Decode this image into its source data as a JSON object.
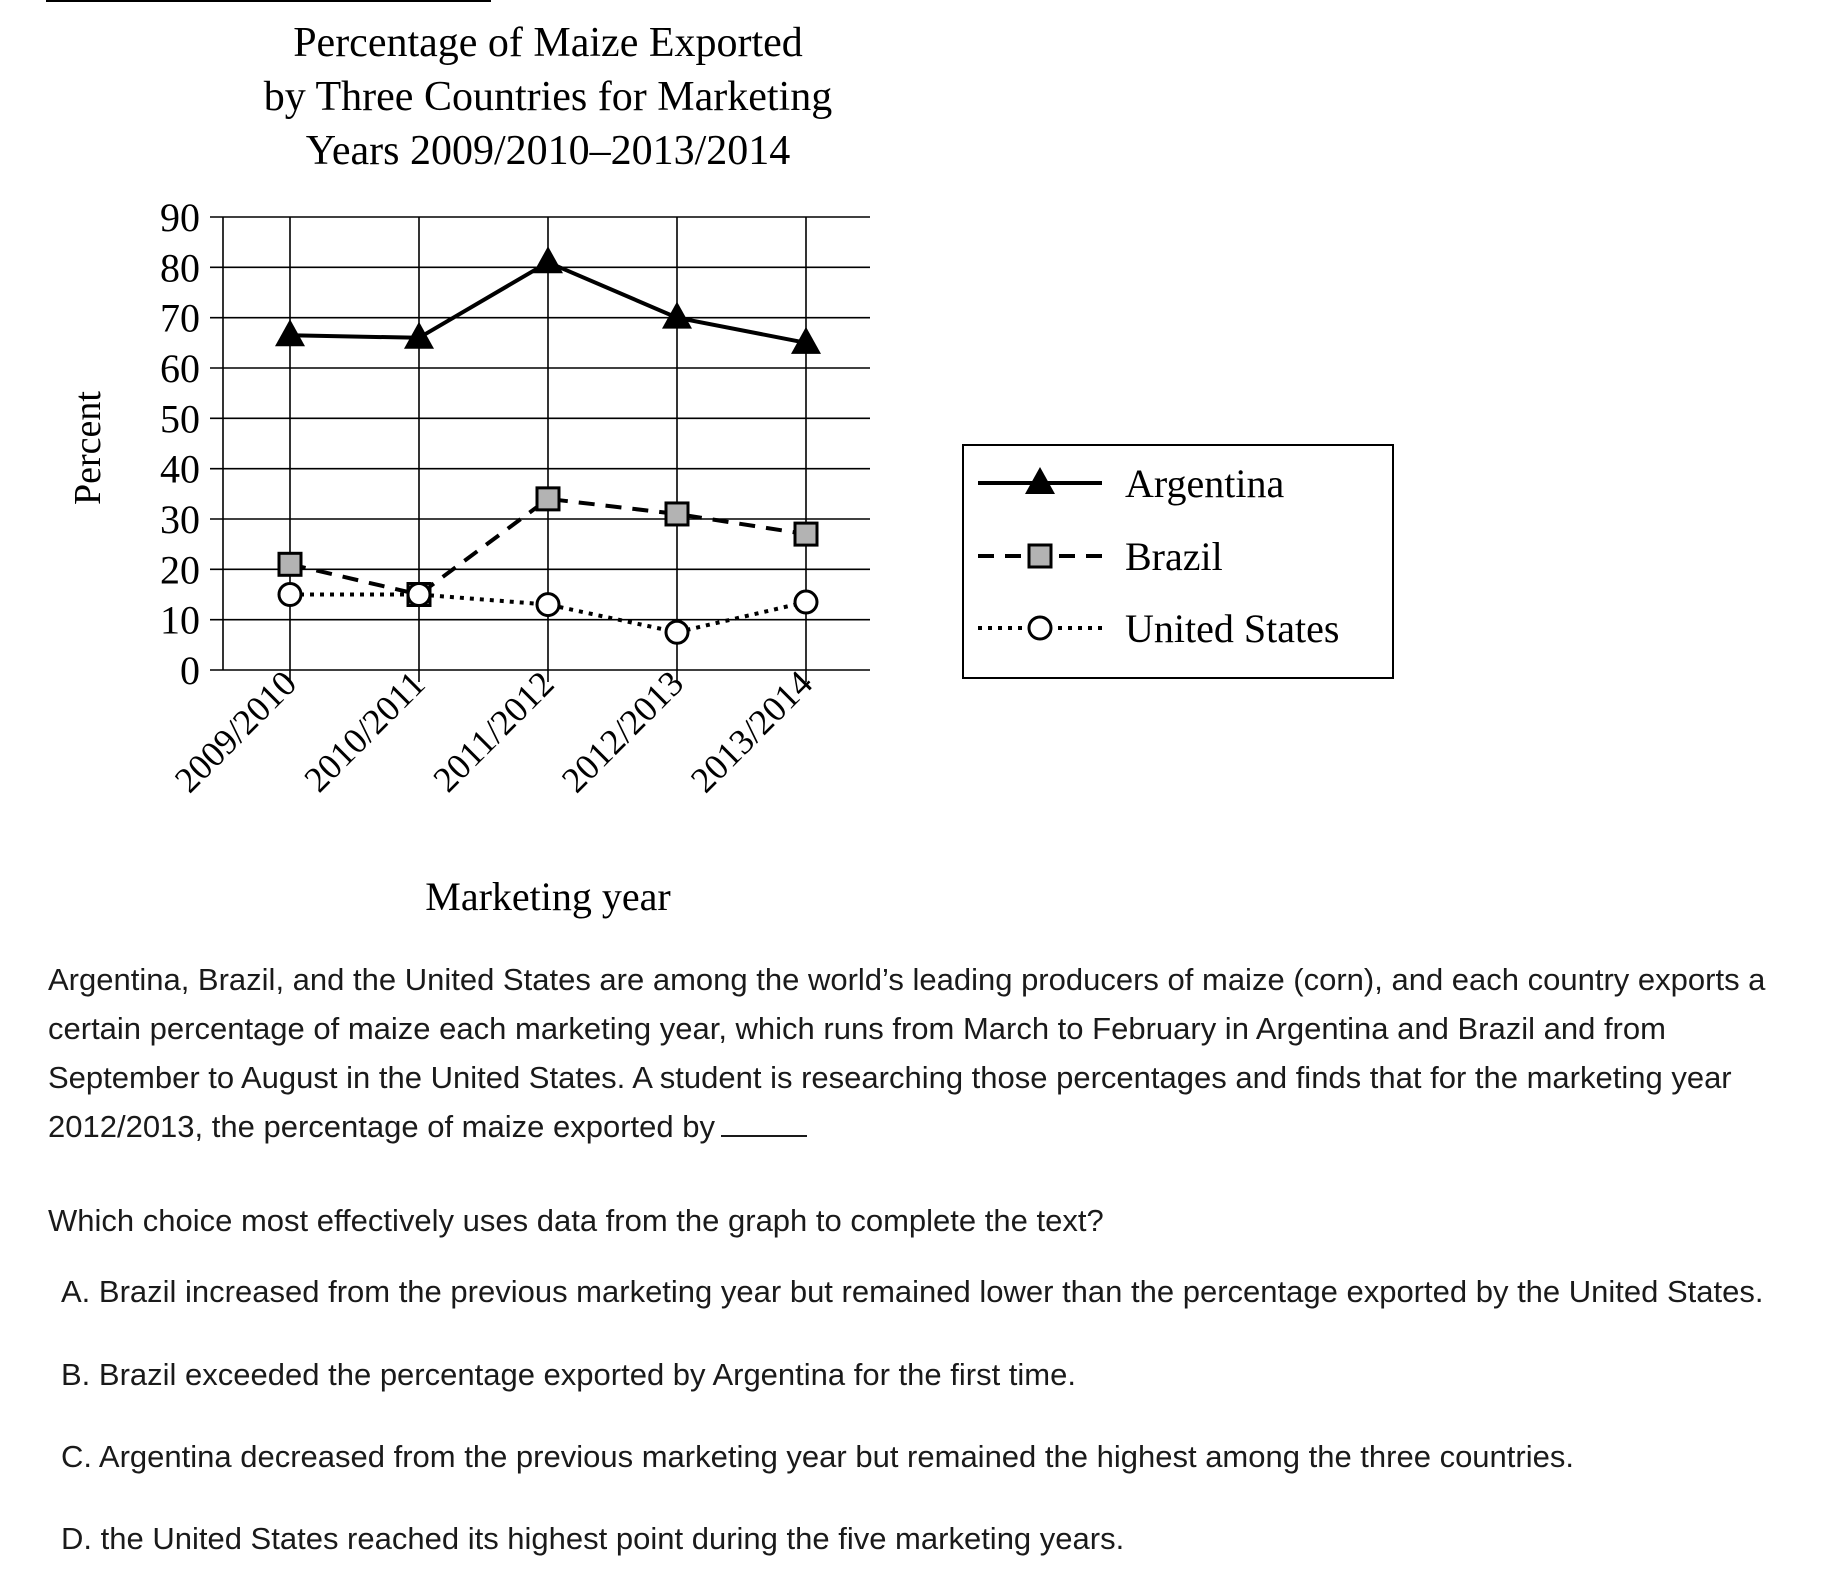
{
  "chart_data": {
    "type": "line",
    "title_lines": [
      "Percentage of Maize Exported",
      "by Three Countries for Marketing",
      "Years 2009/2010–2013/2014"
    ],
    "xlabel": "Marketing year",
    "ylabel": "Percent",
    "categories": [
      "2009/2010",
      "2010/2011",
      "2011/2012",
      "2012/2013",
      "2013/2014"
    ],
    "yticks": [
      "0",
      "10",
      "20",
      "30",
      "40",
      "50",
      "60",
      "70",
      "80",
      "90"
    ],
    "ylim": [
      0,
      90
    ],
    "grid": true,
    "legend_position": "right",
    "series": [
      {
        "name": "Argentina",
        "values": [
          66.5,
          66,
          81,
          70,
          65
        ],
        "marker": "triangle",
        "line_style": "solid",
        "color": "#000000"
      },
      {
        "name": "Brazil",
        "values": [
          21,
          15,
          34,
          31,
          27
        ],
        "marker": "square",
        "line_style": "dashed",
        "color": "#000000",
        "marker_fill": "#b3b3b3"
      },
      {
        "name": "United States",
        "values": [
          15,
          15,
          13,
          7.5,
          13.5
        ],
        "marker": "circle",
        "line_style": "dotted",
        "color": "#000000",
        "marker_fill": "#ffffff"
      }
    ]
  },
  "question": {
    "passage_text": "Argentina, Brazil, and the United States are among the world’s leading producers of maize (corn), and each country exports a certain percentage of maize each marketing year, which runs from March to February in Argentina and Brazil and from September to August in the United States. A student is researching those percentages and finds that for the marketing year 2012/2013, the percentage of maize exported by",
    "prompt": "Which choice most effectively uses data from the graph to complete the text?",
    "choices": [
      {
        "label": "A.",
        "text": "Brazil increased from the previous marketing year but remained lower than the percentage exported by the United States."
      },
      {
        "label": "B.",
        "text": "Brazil exceeded the percentage exported by Argentina for the first time."
      },
      {
        "label": "C.",
        "text": "Argentina decreased from the previous marketing year but remained the highest among the three countries."
      },
      {
        "label": "D.",
        "text": "the United States reached its highest point during the five marketing years."
      }
    ]
  }
}
